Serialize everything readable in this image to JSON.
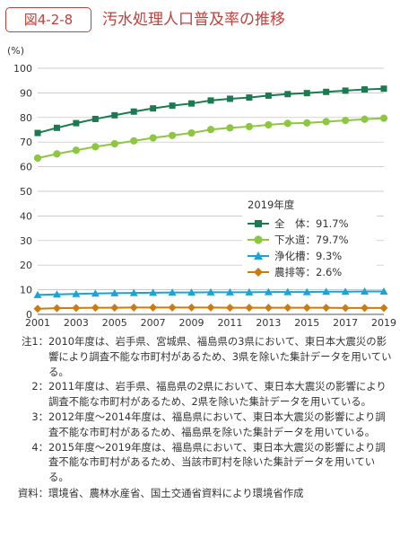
{
  "header": {
    "figure_number": "図4-2-8",
    "title": "汚水処理人口普及率の推移"
  },
  "colors": {
    "accent": "#c0413b",
    "total": "#1a7a50",
    "sewerage": "#8dc63f",
    "johkaso": "#1aa3d6",
    "rural": "#c77d15"
  },
  "chart_data": {
    "type": "line",
    "ylabel": "(%)",
    "ylim": [
      0,
      100
    ],
    "yticks": [
      0,
      10,
      20,
      30,
      40,
      50,
      60,
      70,
      80,
      90,
      100
    ],
    "xticks": [
      "2001",
      "2003",
      "2005",
      "2007",
      "2009",
      "2011",
      "2013",
      "2015",
      "2017",
      "2019"
    ],
    "x": [
      2001,
      2002,
      2003,
      2004,
      2005,
      2006,
      2007,
      2008,
      2009,
      2010,
      2011,
      2012,
      2013,
      2014,
      2015,
      2016,
      2017,
      2018,
      2019
    ],
    "grid": true,
    "legend": {
      "title": "2019年度",
      "placement": "center-right",
      "items": [
        {
          "label": "全　体：91.7%",
          "marker": "square",
          "color": "#1a7a50"
        },
        {
          "label": "下水道：79.7%",
          "marker": "circle",
          "color": "#8dc63f"
        },
        {
          "label": "浄化槽：9.3%",
          "marker": "triangle",
          "color": "#1aa3d6"
        },
        {
          "label": "農排等：2.6%",
          "marker": "diamond",
          "color": "#c77d15"
        }
      ]
    },
    "series": [
      {
        "name": "全　体",
        "marker": "square",
        "color": "#1a7a50",
        "values": [
          73.7,
          75.8,
          77.7,
          79.4,
          80.9,
          82.4,
          83.7,
          84.8,
          85.7,
          86.9,
          87.6,
          88.1,
          88.9,
          89.5,
          89.9,
          90.4,
          90.9,
          91.4,
          91.7
        ]
      },
      {
        "name": "下水道",
        "marker": "circle",
        "color": "#8dc63f",
        "values": [
          63.5,
          65.2,
          66.7,
          68.1,
          69.3,
          70.5,
          71.7,
          72.7,
          73.7,
          75.1,
          75.8,
          76.3,
          77.0,
          77.6,
          77.8,
          78.3,
          78.8,
          79.3,
          79.7
        ]
      },
      {
        "name": "浄化槽",
        "marker": "triangle",
        "color": "#1aa3d6",
        "values": [
          7.9,
          8.1,
          8.3,
          8.5,
          8.6,
          8.7,
          8.8,
          8.9,
          8.9,
          9.0,
          9.0,
          9.0,
          9.1,
          9.1,
          9.1,
          9.2,
          9.2,
          9.3,
          9.3
        ]
      },
      {
        "name": "農排等",
        "marker": "diamond",
        "color": "#c77d15",
        "values": [
          2.3,
          2.5,
          2.6,
          2.7,
          2.7,
          2.8,
          2.8,
          2.8,
          2.8,
          2.8,
          2.7,
          2.7,
          2.7,
          2.7,
          2.7,
          2.7,
          2.6,
          2.6,
          2.6
        ]
      }
    ]
  },
  "notes": [
    {
      "label": "注1：",
      "text": "2010年度は、岩手県、宮城県、福島県の3県において、東日本大震災の影響により調査不能な市町村があるため、3県を除いた集計データを用いている。"
    },
    {
      "label": "2：",
      "text": "2011年度は、岩手県、福島県の2県において、東日本大震災の影響により調査不能な市町村があるため、2県を除いた集計データを用いている。"
    },
    {
      "label": "3：",
      "text": "2012年度～2014年度は、福島県において、東日本大震災の影響により調査不能な市町村があるため、福島県を除いた集計データを用いている。"
    },
    {
      "label": "4：",
      "text": "2015年度～2019年度は、福島県において、東日本大震災の影響により調査不能な市町村があるため、当該市町村を除いた集計データを用いている。"
    }
  ],
  "source": {
    "label": "資料：",
    "text": "環境省、農林水産省、国土交通省資料により環境省作成"
  }
}
